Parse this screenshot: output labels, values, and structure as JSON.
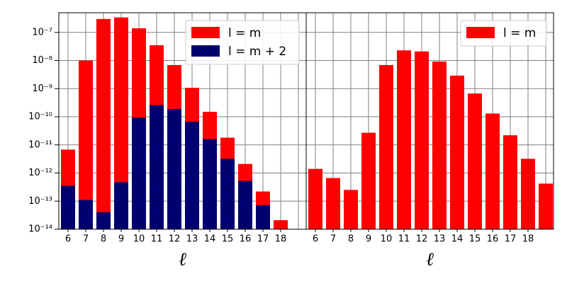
{
  "chart_data": [
    {
      "type": "bar",
      "log_y": true,
      "grid": true,
      "legend": "upper right",
      "xlabel": "ℓ",
      "categories": [
        "6",
        "7",
        "8",
        "9",
        "10",
        "11",
        "12",
        "13",
        "14",
        "15",
        "16",
        "17",
        "18",
        null
      ],
      "series": [
        {
          "name": "l = m",
          "color": "#ff0000",
          "hatch": false,
          "values": [
            6.8e-12,
            1e-08,
            3e-07,
            3.4e-07,
            1.4e-07,
            3.5e-08,
            6.9e-09,
            1.07e-09,
            1.5e-10,
            1.8e-11,
            2.1e-12,
            2.2e-13,
            2.1e-14,
            null
          ]
        },
        {
          "name": "l = m + 2",
          "color": "#000080",
          "hatch": true,
          "values": [
            3.5e-13,
            1.1e-13,
            4e-14,
            4.7e-13,
            9.3e-11,
            2.6e-10,
            1.9e-10,
            6.6e-11,
            1.6e-11,
            3.2e-12,
            5.2e-13,
            7.2e-14,
            null,
            null
          ]
        }
      ],
      "ylim": [
        1e-14,
        5e-07
      ],
      "yticks": [
        {
          "value": 1e-14,
          "label": "10⁻¹⁴"
        },
        {
          "value": 1e-13,
          "label": "10⁻¹³"
        },
        {
          "value": 1e-12,
          "label": "10⁻¹²"
        },
        {
          "value": 1e-11,
          "label": "10⁻¹¹"
        },
        {
          "value": 1e-10,
          "label": "10⁻¹⁰"
        },
        {
          "value": 1e-09,
          "label": "10⁻⁹"
        },
        {
          "value": 1e-08,
          "label": "10⁻⁸"
        },
        {
          "value": 1e-07,
          "label": "10⁻⁷"
        }
      ]
    },
    {
      "type": "bar",
      "log_y": true,
      "grid": true,
      "legend": "upper right",
      "xlabel": "ℓ",
      "categories": [
        "6",
        "7",
        "8",
        "9",
        "10",
        "11",
        "12",
        "13",
        "14",
        "15",
        "16",
        "17",
        "18",
        null
      ],
      "series": [
        {
          "name": "l = m",
          "color": "#ff0000",
          "hatch": false,
          "values": [
            1.4e-12,
            6.6e-13,
            2.5e-13,
            2.7e-11,
            6.9e-09,
            2.3e-08,
            2.1e-08,
            9.2e-09,
            2.9e-09,
            6.7e-10,
            1.3e-10,
            2.2e-11,
            3.2e-12,
            4.2e-13
          ]
        }
      ],
      "ylim": [
        1e-14,
        5e-07
      ],
      "yticks": [
        1e-14,
        1e-13,
        1e-12,
        1e-11,
        1e-10,
        1e-09,
        1e-08,
        1e-07
      ]
    }
  ]
}
